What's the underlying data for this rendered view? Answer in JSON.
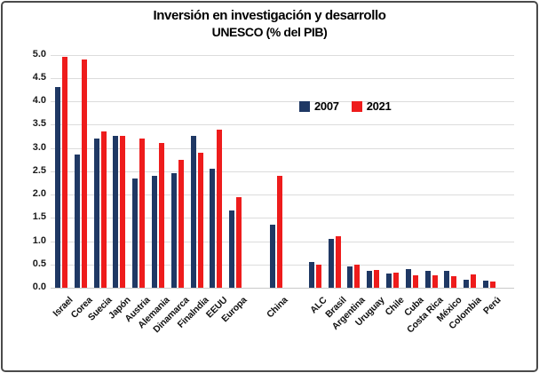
{
  "title": {
    "line1": "Inversión en investigación y desarrollo",
    "line2": "UNESCO (% del PIB)"
  },
  "legend": [
    {
      "label": "2007",
      "color": "#1f3864"
    },
    {
      "label": "2021",
      "color": "#ee1c1c"
    }
  ],
  "colors": {
    "series_2007": "#1f3864",
    "series_2021": "#ee1c1c",
    "gridline": "#dcdcdc",
    "frame_border": "#4a4a4a"
  },
  "chart_data": {
    "type": "bar",
    "title": "Inversión en investigación y desarrollo UNESCO (% del PIB)",
    "categories": [
      "Israel",
      "Corea",
      "Suecia",
      "Japón",
      "Austria",
      "Alemania",
      "Dinamarca",
      "Finalndia",
      "EEUU",
      "Europa",
      "China",
      "ALC",
      "Brasil",
      "Argentina",
      "Uruguay",
      "Chile",
      "Cuba",
      "Costa Rica",
      "México",
      "Colombia",
      "Perú"
    ],
    "series": [
      {
        "name": "2007",
        "color": "#1f3864",
        "values": [
          4.3,
          2.85,
          3.2,
          3.25,
          2.35,
          2.4,
          2.45,
          3.25,
          2.55,
          1.65,
          1.35,
          0.55,
          1.05,
          0.45,
          0.36,
          0.3,
          0.4,
          0.36,
          0.36,
          0.18,
          0.15
        ]
      },
      {
        "name": "2021",
        "color": "#ee1c1c",
        "values": [
          4.95,
          4.9,
          3.35,
          3.25,
          3.2,
          3.1,
          2.75,
          2.9,
          3.4,
          1.95,
          2.4,
          0.5,
          1.1,
          0.5,
          0.38,
          0.33,
          0.27,
          0.27,
          0.25,
          0.29,
          0.13
        ]
      }
    ],
    "xlabel": "",
    "ylabel": "",
    "ylim": [
      0,
      5
    ],
    "ytick_step": 0.5,
    "yticks": [
      "0.0",
      "0.5",
      "1.0",
      "1.5",
      "2.0",
      "2.5",
      "3.0",
      "3.5",
      "4.0",
      "4.5",
      "5.0"
    ],
    "grid": true,
    "legend_position": "inside-upper-right"
  }
}
